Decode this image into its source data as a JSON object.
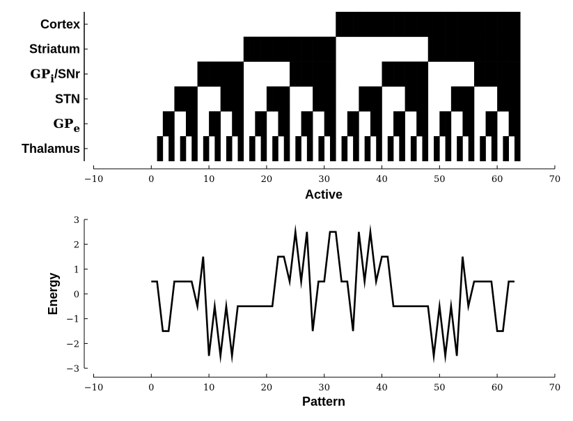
{
  "chart_data": [
    {
      "type": "heatmap",
      "title": "",
      "xlabel": "Active",
      "xlim": [
        -10,
        70
      ],
      "xticks": [
        -10,
        0,
        10,
        20,
        30,
        40,
        50,
        60,
        70
      ],
      "xtick_labels": [
        "−10",
        "0",
        "10",
        "20",
        "30",
        "40",
        "50",
        "60",
        "70"
      ],
      "colors": {
        "active": "#000000",
        "inactive": "#ffffff"
      },
      "rows": [
        {
          "label": "Cortex",
          "period": 64
        },
        {
          "label": "Striatum",
          "period": 32
        },
        {
          "label_main": "GP",
          "label_sub": "i",
          "label_rest": "/SNr",
          "period": 16
        },
        {
          "label": "STN",
          "period": 8
        },
        {
          "label_main": "GP",
          "label_sub": "e",
          "label_rest": "",
          "period": 4
        },
        {
          "label": "Thalamus",
          "period": 2
        }
      ],
      "patterns": [
        0,
        63
      ]
    },
    {
      "type": "line",
      "title": "",
      "xlabel": "Pattern",
      "ylabel": "Energy",
      "xlim": [
        -10,
        70
      ],
      "ylim": [
        -3,
        3
      ],
      "xticks": [
        -10,
        0,
        10,
        20,
        30,
        40,
        50,
        60,
        70
      ],
      "xtick_labels": [
        "−10",
        "0",
        "10",
        "20",
        "30",
        "40",
        "50",
        "60",
        "70"
      ],
      "yticks": [
        -3,
        -2,
        -1,
        0,
        1,
        2,
        3
      ],
      "ytick_labels": [
        "−3",
        "−2",
        "−1",
        "0",
        "1",
        "2",
        "3"
      ],
      "grid": false,
      "color": "#000000",
      "series": [
        {
          "x": [
            0,
            1,
            2,
            3,
            4,
            5,
            6,
            7,
            8,
            9,
            10,
            11,
            12,
            13,
            14,
            15,
            16,
            17,
            18,
            19,
            20,
            21,
            22,
            23,
            24,
            25,
            26,
            27,
            28,
            29,
            30,
            31,
            32,
            33,
            34,
            35,
            36,
            37,
            38,
            39,
            40,
            41,
            42,
            43,
            44,
            45,
            46,
            47,
            48,
            49,
            50,
            51,
            52,
            53,
            54,
            55,
            56,
            57,
            58,
            59,
            60,
            61,
            62,
            63
          ],
          "y": [
            0.5,
            0.5,
            -1.5,
            -1.5,
            0.5,
            0.5,
            0.5,
            0.5,
            -0.5,
            1.5,
            -2.5,
            -0.5,
            -2.5,
            -0.5,
            -2.5,
            -0.5,
            -0.5,
            -0.5,
            -0.5,
            -0.5,
            -0.5,
            -0.5,
            1.5,
            1.5,
            0.5,
            2.5,
            0.5,
            2.5,
            -1.5,
            0.5,
            0.5,
            2.5,
            2.5,
            0.5,
            0.5,
            -1.5,
            2.5,
            0.5,
            2.5,
            0.5,
            1.5,
            1.5,
            -0.5,
            -0.5,
            -0.5,
            -0.5,
            -0.5,
            -0.5,
            -0.5,
            -2.5,
            -0.5,
            -2.5,
            -0.5,
            -2.5,
            1.5,
            -0.5,
            0.5,
            0.5,
            0.5,
            0.5,
            -1.5,
            -1.5,
            0.5,
            0.5
          ]
        }
      ]
    }
  ]
}
